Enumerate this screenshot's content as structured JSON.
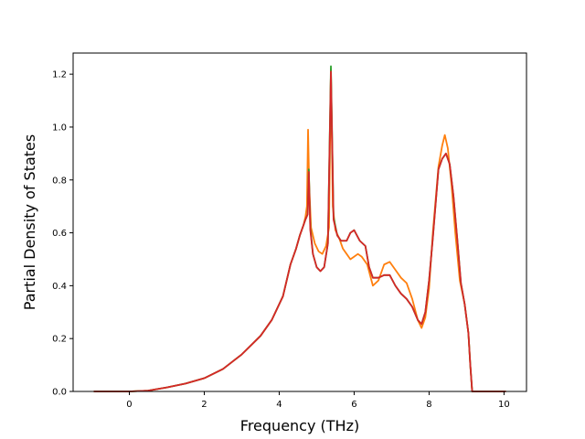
{
  "chart_data": {
    "type": "line",
    "title": "",
    "xlabel": "Frequency (THz)",
    "ylabel": "Partial Density of States",
    "xlim": [
      -1.5,
      10.6
    ],
    "ylim": [
      0.0,
      1.28
    ],
    "xticks": [
      0,
      2,
      4,
      6,
      8,
      10
    ],
    "yticks": [
      0.0,
      0.2,
      0.4,
      0.6,
      0.8,
      1.0,
      1.2
    ],
    "grid": false,
    "legend": "none",
    "series": [
      {
        "color": "#ff7f0e",
        "points": [
          [
            -0.95,
            0.0
          ],
          [
            0.0,
            0.0
          ],
          [
            0.5,
            0.003
          ],
          [
            1.0,
            0.015
          ],
          [
            1.5,
            0.03
          ],
          [
            2.0,
            0.05
          ],
          [
            2.5,
            0.085
          ],
          [
            3.0,
            0.14
          ],
          [
            3.5,
            0.21
          ],
          [
            3.8,
            0.27
          ],
          [
            4.1,
            0.36
          ],
          [
            4.3,
            0.48
          ],
          [
            4.45,
            0.54
          ],
          [
            4.55,
            0.59
          ],
          [
            4.65,
            0.63
          ],
          [
            4.7,
            0.66
          ],
          [
            4.74,
            0.7
          ],
          [
            4.77,
            0.99
          ],
          [
            4.8,
            0.78
          ],
          [
            4.85,
            0.62
          ],
          [
            4.95,
            0.56
          ],
          [
            5.05,
            0.53
          ],
          [
            5.15,
            0.52
          ],
          [
            5.25,
            0.55
          ],
          [
            5.33,
            0.62
          ],
          [
            5.38,
            1.22
          ],
          [
            5.43,
            0.7
          ],
          [
            5.5,
            0.61
          ],
          [
            5.6,
            0.58
          ],
          [
            5.7,
            0.54
          ],
          [
            5.8,
            0.52
          ],
          [
            5.9,
            0.5
          ],
          [
            6.0,
            0.51
          ],
          [
            6.1,
            0.52
          ],
          [
            6.2,
            0.51
          ],
          [
            6.35,
            0.48
          ],
          [
            6.5,
            0.4
          ],
          [
            6.65,
            0.42
          ],
          [
            6.8,
            0.48
          ],
          [
            6.95,
            0.49
          ],
          [
            7.1,
            0.46
          ],
          [
            7.25,
            0.43
          ],
          [
            7.4,
            0.41
          ],
          [
            7.55,
            0.35
          ],
          [
            7.7,
            0.27
          ],
          [
            7.8,
            0.24
          ],
          [
            7.9,
            0.28
          ],
          [
            8.0,
            0.39
          ],
          [
            8.1,
            0.6
          ],
          [
            8.25,
            0.85
          ],
          [
            8.35,
            0.93
          ],
          [
            8.42,
            0.97
          ],
          [
            8.5,
            0.92
          ],
          [
            8.6,
            0.78
          ],
          [
            8.7,
            0.6
          ],
          [
            8.82,
            0.42
          ],
          [
            8.95,
            0.33
          ],
          [
            9.05,
            0.22
          ],
          [
            9.1,
            0.1
          ],
          [
            9.15,
            0.0
          ],
          [
            10.05,
            0.0
          ]
        ]
      },
      {
        "color": "#2ca02c",
        "points": [
          [
            -0.95,
            0.0
          ],
          [
            0.0,
            0.0
          ],
          [
            0.5,
            0.003
          ],
          [
            1.0,
            0.015
          ],
          [
            1.5,
            0.03
          ],
          [
            2.0,
            0.05
          ],
          [
            2.5,
            0.085
          ],
          [
            3.0,
            0.14
          ],
          [
            3.5,
            0.21
          ],
          [
            3.8,
            0.27
          ],
          [
            4.1,
            0.36
          ],
          [
            4.3,
            0.48
          ],
          [
            4.45,
            0.54
          ],
          [
            4.55,
            0.59
          ],
          [
            4.65,
            0.63
          ],
          [
            4.7,
            0.65
          ],
          [
            4.76,
            0.67
          ],
          [
            4.79,
            0.84
          ],
          [
            4.83,
            0.62
          ],
          [
            4.9,
            0.52
          ],
          [
            5.0,
            0.47
          ],
          [
            5.1,
            0.455
          ],
          [
            5.2,
            0.47
          ],
          [
            5.3,
            0.56
          ],
          [
            5.38,
            1.23
          ],
          [
            5.45,
            0.66
          ],
          [
            5.55,
            0.59
          ],
          [
            5.65,
            0.57
          ],
          [
            5.8,
            0.57
          ],
          [
            5.9,
            0.6
          ],
          [
            6.0,
            0.61
          ],
          [
            6.15,
            0.57
          ],
          [
            6.3,
            0.55
          ],
          [
            6.4,
            0.47
          ],
          [
            6.5,
            0.43
          ],
          [
            6.65,
            0.43
          ],
          [
            6.8,
            0.44
          ],
          [
            6.95,
            0.44
          ],
          [
            7.1,
            0.4
          ],
          [
            7.25,
            0.37
          ],
          [
            7.4,
            0.35
          ],
          [
            7.55,
            0.32
          ],
          [
            7.7,
            0.27
          ],
          [
            7.8,
            0.255
          ],
          [
            7.9,
            0.3
          ],
          [
            8.0,
            0.42
          ],
          [
            8.1,
            0.58
          ],
          [
            8.25,
            0.84
          ],
          [
            8.35,
            0.88
          ],
          [
            8.45,
            0.9
          ],
          [
            8.55,
            0.86
          ],
          [
            8.65,
            0.74
          ],
          [
            8.75,
            0.58
          ],
          [
            8.85,
            0.41
          ],
          [
            8.95,
            0.33
          ],
          [
            9.05,
            0.22
          ],
          [
            9.1,
            0.1
          ],
          [
            9.15,
            0.0
          ],
          [
            10.05,
            0.0
          ]
        ]
      },
      {
        "color": "#d62728",
        "points": [
          [
            -0.95,
            0.0
          ],
          [
            0.0,
            0.0
          ],
          [
            0.5,
            0.003
          ],
          [
            1.0,
            0.015
          ],
          [
            1.5,
            0.03
          ],
          [
            2.0,
            0.05
          ],
          [
            2.5,
            0.085
          ],
          [
            3.0,
            0.14
          ],
          [
            3.5,
            0.21
          ],
          [
            3.8,
            0.27
          ],
          [
            4.1,
            0.36
          ],
          [
            4.3,
            0.48
          ],
          [
            4.45,
            0.54
          ],
          [
            4.55,
            0.59
          ],
          [
            4.65,
            0.63
          ],
          [
            4.7,
            0.65
          ],
          [
            4.76,
            0.67
          ],
          [
            4.79,
            0.83
          ],
          [
            4.83,
            0.61
          ],
          [
            4.9,
            0.52
          ],
          [
            5.0,
            0.47
          ],
          [
            5.1,
            0.455
          ],
          [
            5.2,
            0.47
          ],
          [
            5.3,
            0.56
          ],
          [
            5.38,
            1.21
          ],
          [
            5.45,
            0.65
          ],
          [
            5.55,
            0.59
          ],
          [
            5.65,
            0.57
          ],
          [
            5.8,
            0.57
          ],
          [
            5.9,
            0.6
          ],
          [
            6.0,
            0.61
          ],
          [
            6.15,
            0.57
          ],
          [
            6.3,
            0.55
          ],
          [
            6.4,
            0.47
          ],
          [
            6.5,
            0.43
          ],
          [
            6.65,
            0.43
          ],
          [
            6.8,
            0.44
          ],
          [
            6.95,
            0.44
          ],
          [
            7.1,
            0.4
          ],
          [
            7.25,
            0.37
          ],
          [
            7.4,
            0.35
          ],
          [
            7.55,
            0.32
          ],
          [
            7.7,
            0.27
          ],
          [
            7.8,
            0.255
          ],
          [
            7.9,
            0.3
          ],
          [
            8.0,
            0.42
          ],
          [
            8.1,
            0.58
          ],
          [
            8.25,
            0.84
          ],
          [
            8.35,
            0.88
          ],
          [
            8.45,
            0.9
          ],
          [
            8.55,
            0.86
          ],
          [
            8.65,
            0.74
          ],
          [
            8.75,
            0.58
          ],
          [
            8.85,
            0.41
          ],
          [
            8.95,
            0.33
          ],
          [
            9.05,
            0.22
          ],
          [
            9.1,
            0.1
          ],
          [
            9.15,
            0.0
          ],
          [
            10.05,
            0.0
          ]
        ]
      }
    ]
  }
}
